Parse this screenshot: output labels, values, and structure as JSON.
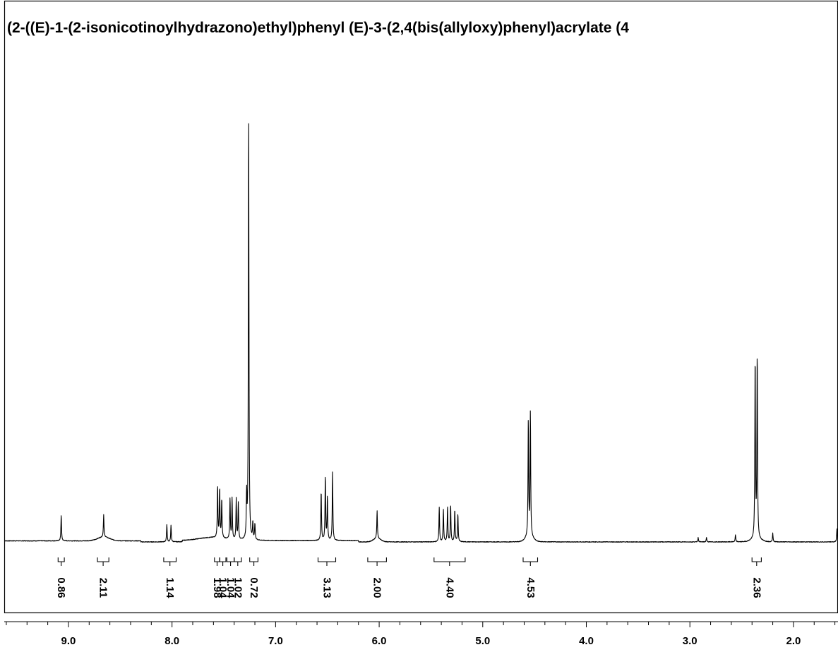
{
  "chart_data": {
    "type": "line",
    "title": "(2-((E)-1-(2-isonicotinoylhydrazono)ethyl)phenyl (E)-3-(2,4(bis(allyloxy)phenyl)acrylate (4",
    "xlabel": "",
    "ylabel": "",
    "x_axis": {
      "reversed": true,
      "xlim": [
        9.62,
        1.57
      ],
      "major_ticks": [
        9.0,
        8.0,
        7.0,
        6.0,
        5.0,
        4.0,
        3.0,
        2.0
      ],
      "tick_labels": [
        "9.0",
        "8.0",
        "7.0",
        "6.0",
        "5.0",
        "4.0",
        "3.0",
        "2.0"
      ],
      "minor_step": 0.2
    },
    "ylim": [
      0,
      100
    ],
    "grid": false,
    "legend": "none",
    "colors": {
      "line": "#000000",
      "frame": "#000000",
      "background": "#ffffff"
    },
    "peaks": [
      {
        "ppm": 9.07,
        "height": 6.0
      },
      {
        "ppm": 8.66,
        "height": 5.2
      },
      {
        "ppm": 8.05,
        "height": 4.0
      },
      {
        "ppm": 8.01,
        "height": 3.8
      },
      {
        "ppm": 7.56,
        "height": 12.0
      },
      {
        "ppm": 7.54,
        "height": 11.5
      },
      {
        "ppm": 7.52,
        "height": 9.0
      },
      {
        "ppm": 7.44,
        "height": 9.5
      },
      {
        "ppm": 7.42,
        "height": 9.5
      },
      {
        "ppm": 7.38,
        "height": 9.5
      },
      {
        "ppm": 7.36,
        "height": 8.5
      },
      {
        "ppm": 7.28,
        "height": 10.0
      },
      {
        "ppm": 7.26,
        "height": 100.0
      },
      {
        "ppm": 7.22,
        "height": 4.0
      },
      {
        "ppm": 7.2,
        "height": 3.8
      },
      {
        "ppm": 6.56,
        "height": 11.5
      },
      {
        "ppm": 6.52,
        "height": 15.0
      },
      {
        "ppm": 6.5,
        "height": 10.0
      },
      {
        "ppm": 6.45,
        "height": 16.0
      },
      {
        "ppm": 6.02,
        "height": 6.5
      },
      {
        "ppm": 5.42,
        "height": 8.0
      },
      {
        "ppm": 5.38,
        "height": 7.5
      },
      {
        "ppm": 5.34,
        "height": 8.2
      },
      {
        "ppm": 5.31,
        "height": 8.5
      },
      {
        "ppm": 5.27,
        "height": 7.5
      },
      {
        "ppm": 5.24,
        "height": 6.5
      },
      {
        "ppm": 4.56,
        "height": 27.0
      },
      {
        "ppm": 4.54,
        "height": 29.0
      },
      {
        "ppm": 2.37,
        "height": 42.0
      },
      {
        "ppm": 2.35,
        "height": 43.0
      },
      {
        "ppm": 2.2,
        "height": 2.0
      },
      {
        "ppm": 2.56,
        "height": 1.6
      },
      {
        "ppm": 2.92,
        "height": 1.0
      },
      {
        "ppm": 2.84,
        "height": 1.0
      },
      {
        "ppm": 1.58,
        "height": 3.0
      }
    ],
    "integrals": [
      {
        "label": "0.86",
        "from": 9.1,
        "to": 9.04
      },
      {
        "label": "2.11",
        "from": 8.72,
        "to": 8.61
      },
      {
        "label": "1.14",
        "from": 8.08,
        "to": 7.96
      },
      {
        "label": "1.98",
        "from": 7.59,
        "to": 7.54
      },
      {
        "label": "1.04",
        "from": 7.54,
        "to": 7.48
      },
      {
        "label": "1.04",
        "from": 7.47,
        "to": 7.4
      },
      {
        "label": "1.02",
        "from": 7.4,
        "to": 7.33
      },
      {
        "label": "0.72",
        "from": 7.25,
        "to": 7.17
      },
      {
        "label": "3.13",
        "from": 6.59,
        "to": 6.42
      },
      {
        "label": "2.00",
        "from": 6.11,
        "to": 5.93
      },
      {
        "label": "4.40",
        "from": 5.47,
        "to": 5.17
      },
      {
        "label": "4.53",
        "from": 4.61,
        "to": 4.47
      },
      {
        "label": "2.36",
        "from": 2.4,
        "to": 2.31
      }
    ]
  }
}
